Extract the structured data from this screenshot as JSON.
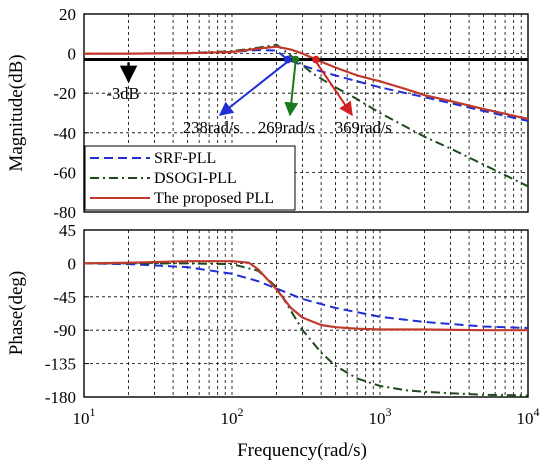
{
  "chart_data": [
    {
      "type": "line",
      "panel": "magnitude",
      "ylabel": "Magnitude(dB)",
      "xscale": "log",
      "xlim": [
        10,
        10000
      ],
      "ylim": [
        -80,
        20
      ],
      "yticks": [
        20,
        0,
        -20,
        -40,
        -60,
        -80
      ],
      "grid": true,
      "legend_position": "bottom-left",
      "cutoff_line": {
        "y": -3
      },
      "series": [
        {
          "name": "SRF-PLL",
          "style": "dashed",
          "color": "#1f2fd6",
          "x": [
            10,
            20,
            50,
            100,
            150,
            200,
            238,
            300,
            400,
            500,
            700,
            1000,
            1500,
            2000,
            3000,
            5000,
            10000
          ],
          "y": [
            0,
            0,
            0.2,
            0.8,
            1.8,
            1.5,
            -3,
            -6,
            -9,
            -11,
            -14,
            -17,
            -20,
            -22,
            -25,
            -29,
            -34
          ]
        },
        {
          "name": "DSOGI-PLL",
          "style": "dashdot",
          "color": "#1e4a1e",
          "x": [
            10,
            20,
            50,
            100,
            150,
            200,
            269,
            350,
            500,
            700,
            1000,
            1500,
            2000,
            3000,
            5000,
            10000
          ],
          "y": [
            0,
            0,
            0.3,
            1.2,
            3,
            4.5,
            -3,
            -10,
            -17,
            -23,
            -30,
            -37,
            -42,
            -48,
            -56,
            -67
          ]
        },
        {
          "name": "The proposed PLL",
          "style": "solid",
          "color": "#c0392b",
          "x": [
            10,
            20,
            50,
            100,
            150,
            200,
            250,
            300,
            369,
            500,
            700,
            1000,
            1500,
            2000,
            3000,
            5000,
            10000
          ],
          "y": [
            0,
            0,
            0.2,
            0.8,
            2.5,
            3.5,
            2,
            0,
            -3,
            -7,
            -11,
            -14,
            -18,
            -21,
            -24,
            -28,
            -33
          ]
        }
      ],
      "annotations": [
        {
          "text": "-3dB",
          "arrow_x": 20
        },
        {
          "text": "238rad/s",
          "point_x": 238,
          "color": "#1f2fd6"
        },
        {
          "text": "269rad/s",
          "point_x": 269,
          "color": "#1a7a1a"
        },
        {
          "text": "369rad/s",
          "point_x": 369,
          "color": "#d02020"
        }
      ]
    },
    {
      "type": "line",
      "panel": "phase",
      "ylabel": "Phase(deg)",
      "xlabel": "Frequency(rad/s)",
      "xscale": "log",
      "xlim": [
        10,
        10000
      ],
      "ylim": [
        -180,
        45
      ],
      "yticks": [
        45,
        0,
        -45,
        -90,
        -135,
        -180
      ],
      "grid": true,
      "series": [
        {
          "name": "SRF-PLL",
          "style": "dashed",
          "color": "#1f2fd6",
          "x": [
            10,
            20,
            50,
            100,
            150,
            200,
            300,
            500,
            1000,
            2000,
            5000,
            10000
          ],
          "y": [
            0,
            -1,
            -5,
            -14,
            -24,
            -34,
            -48,
            -60,
            -72,
            -79,
            -85,
            -87
          ]
        },
        {
          "name": "DSOGI-PLL",
          "style": "dashdot",
          "color": "#1e4a1e",
          "x": [
            10,
            20,
            50,
            100,
            150,
            200,
            300,
            400,
            500,
            700,
            1000,
            1500,
            2000,
            3000,
            5000,
            10000
          ],
          "y": [
            0,
            0,
            0,
            -1,
            -10,
            -32,
            -90,
            -120,
            -138,
            -155,
            -165,
            -171,
            -173,
            -175,
            -177,
            -178
          ]
        },
        {
          "name": "The proposed PLL",
          "style": "solid",
          "color": "#c0392b",
          "x": [
            10,
            20,
            50,
            100,
            130,
            150,
            200,
            250,
            300,
            400,
            500,
            700,
            1000,
            2000,
            5000,
            10000
          ],
          "y": [
            0,
            1,
            3,
            3,
            1,
            -8,
            -35,
            -60,
            -73,
            -83,
            -86,
            -88,
            -89,
            -89,
            -90,
            -90
          ]
        }
      ]
    }
  ],
  "xticks": [
    {
      "base": "10",
      "exp": "1"
    },
    {
      "base": "10",
      "exp": "2"
    },
    {
      "base": "10",
      "exp": "3"
    },
    {
      "base": "10",
      "exp": "4"
    }
  ]
}
